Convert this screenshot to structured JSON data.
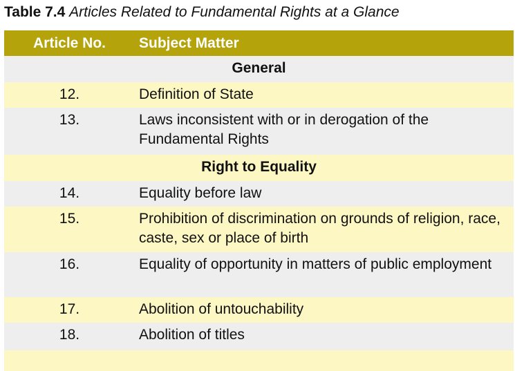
{
  "caption": {
    "number": "Table 7.4",
    "title": "Articles Related to Fundamental Rights at a Glance"
  },
  "table": {
    "headers": [
      "Article No.",
      "Subject Matter"
    ],
    "sections": [
      {
        "title": "General"
      },
      {
        "title": "Right to Equality"
      }
    ],
    "rows": [
      {
        "article": "12.",
        "subject": "Definition of State"
      },
      {
        "article": "13.",
        "subject": "Laws inconsistent with or in derogation of the Fundamental Rights"
      },
      {
        "article": "14.",
        "subject": "Equality before law"
      },
      {
        "article": "15.",
        "subject": "Prohibition of discrimination on grounds of religion, race, caste, sex or place of birth"
      },
      {
        "article": "16.",
        "subject": "Equality of opportunity in matters of public employment"
      },
      {
        "article": "17.",
        "subject": "Abolition of untouchability"
      },
      {
        "article": "18.",
        "subject": "Abolition of titles"
      }
    ]
  },
  "colors": {
    "header_bg": "#b5a30b",
    "stripe_grey": "#eeeeee",
    "stripe_yellow": "#fdf7c4"
  }
}
